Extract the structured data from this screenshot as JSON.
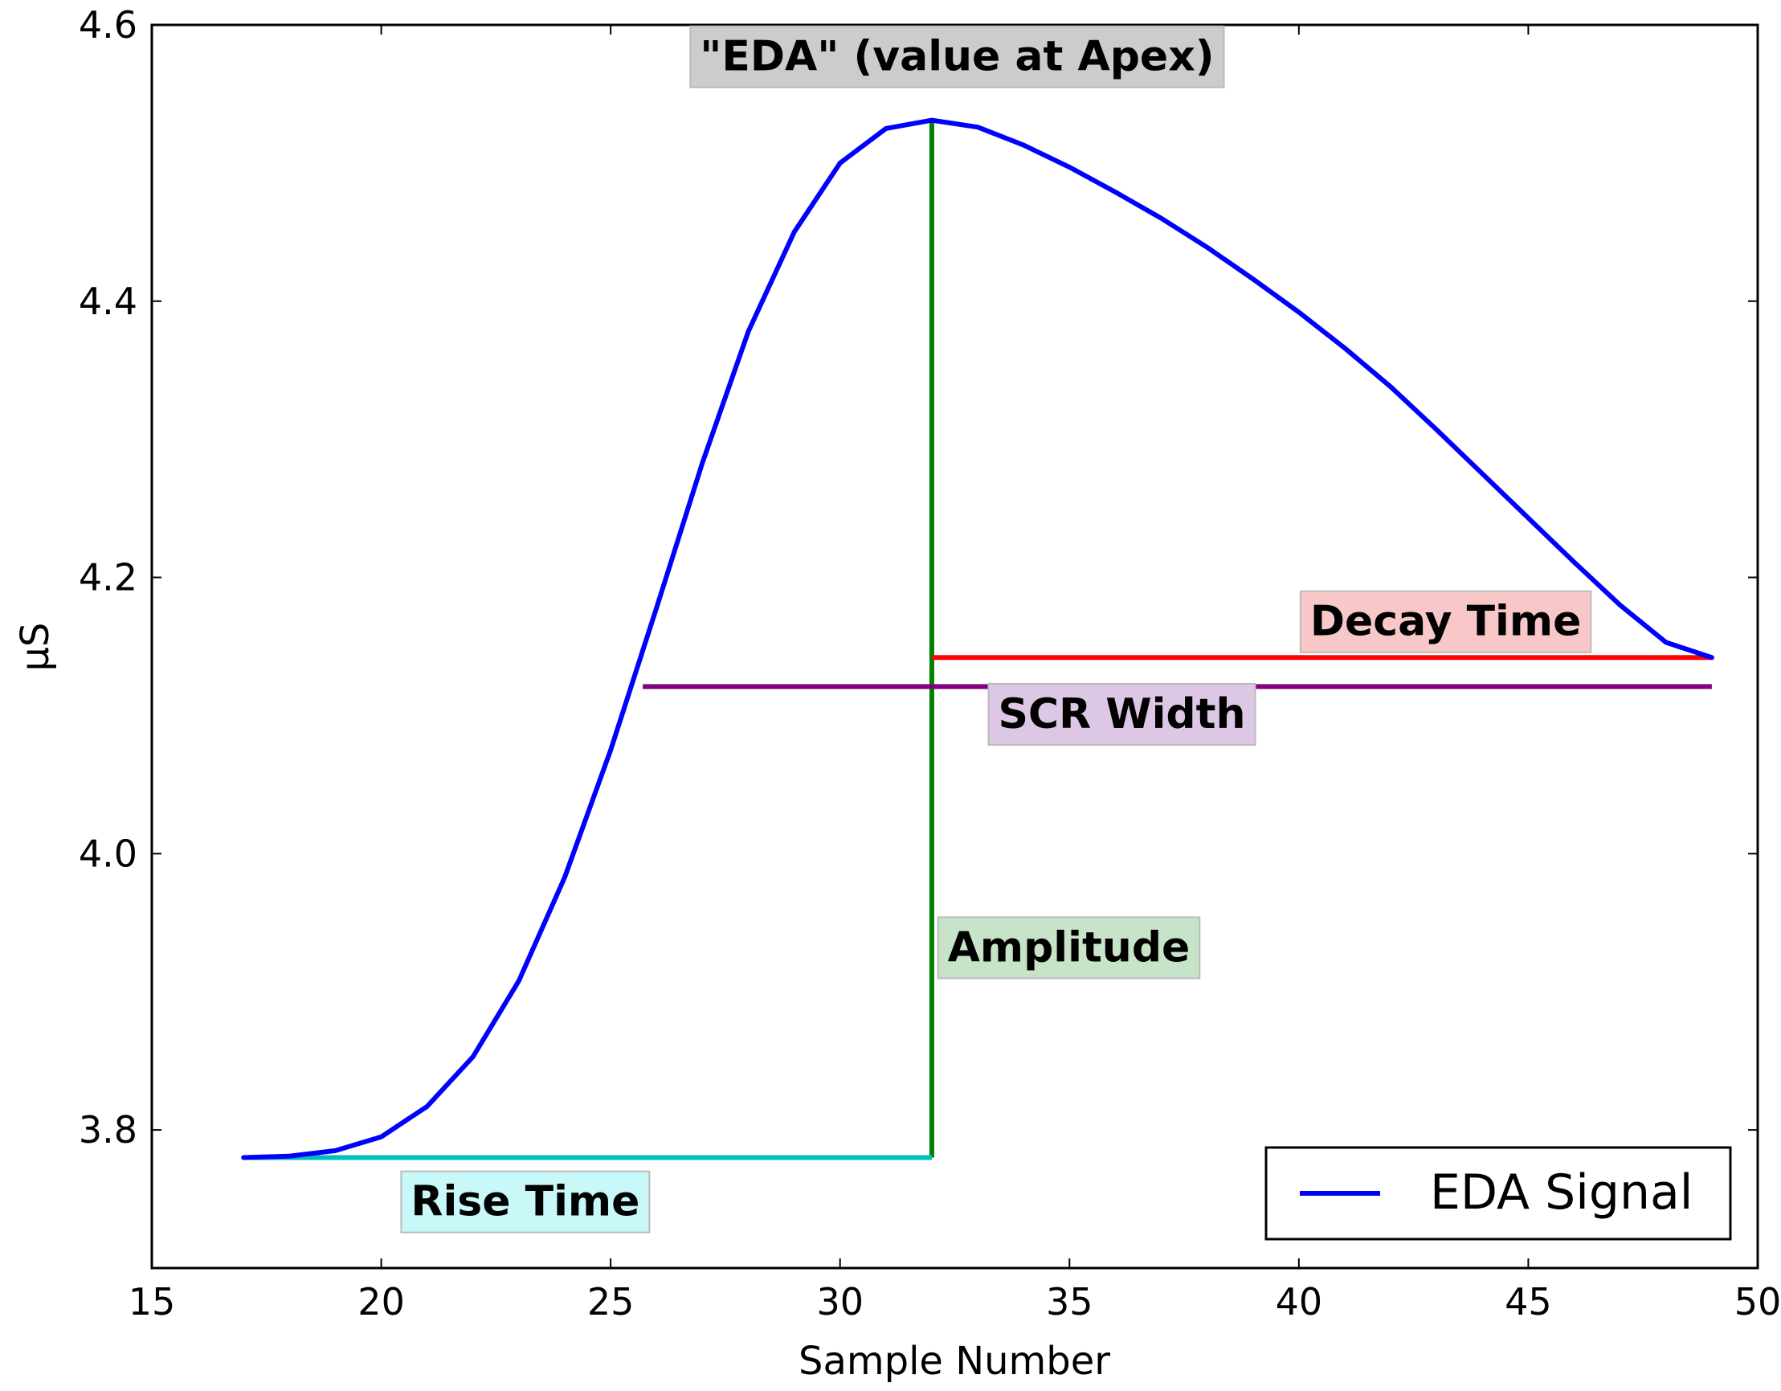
{
  "chart_data": {
    "type": "line",
    "xlabel": "Sample Number",
    "ylabel": "μS",
    "xlim": [
      15,
      50
    ],
    "ylim": [
      3.7,
      4.6
    ],
    "xticks": [
      15,
      20,
      25,
      30,
      35,
      40,
      45,
      50
    ],
    "yticks": [
      3.8,
      4.0,
      4.2,
      4.4,
      4.6
    ],
    "xtick_labels": [
      "15",
      "20",
      "25",
      "30",
      "35",
      "40",
      "45",
      "50"
    ],
    "ytick_labels": [
      "3.8",
      "4.0",
      "4.2",
      "4.4",
      "4.6"
    ],
    "grid": false,
    "legend": {
      "position": "lower-right",
      "entries": [
        "EDA Signal"
      ]
    },
    "series": [
      {
        "name": "EDA Signal",
        "color": "#0000ff",
        "x": [
          17,
          18,
          19,
          20,
          21,
          22,
          23,
          24,
          25,
          26,
          27,
          28,
          29,
          30,
          31,
          32,
          33,
          34,
          35,
          36,
          37,
          38,
          39,
          40,
          41,
          42,
          43,
          44,
          45,
          46,
          47,
          48,
          49
        ],
        "y": [
          3.78,
          3.781,
          3.785,
          3.795,
          3.817,
          3.853,
          3.908,
          3.983,
          4.075,
          4.178,
          4.283,
          4.378,
          4.45,
          4.5,
          4.525,
          4.531,
          4.526,
          4.513,
          4.497,
          4.479,
          4.46,
          4.439,
          4.416,
          4.392,
          4.366,
          4.338,
          4.307,
          4.275,
          4.243,
          4.211,
          4.18,
          4.153,
          4.142
        ]
      }
    ],
    "annotation_lines": [
      {
        "name": "Amplitude",
        "color": "#008000",
        "x1": 32,
        "y1": 3.78,
        "x2": 32,
        "y2": 4.531
      },
      {
        "name": "Rise Time",
        "color": "#00bfbf",
        "x1": 17,
        "y1": 3.78,
        "x2": 32,
        "y2": 3.78
      },
      {
        "name": "Decay Time",
        "color": "#ff0000",
        "x1": 32,
        "y1": 4.142,
        "x2": 49,
        "y2": 4.142
      },
      {
        "name": "SCR Width",
        "color": "#800080",
        "x1": 25.7,
        "y1": 4.121,
        "x2": 49,
        "y2": 4.121
      }
    ],
    "annotations": [
      {
        "text": "\"EDA\" (value at Apex)",
        "x": 26.7,
        "y": 4.567,
        "bg": "#cccccc"
      },
      {
        "text": "Decay Time",
        "x": 40,
        "y": 4.158,
        "bg": "#f8c8c8"
      },
      {
        "text": "SCR Width",
        "x": 33.2,
        "y": 4.091,
        "bg": "#dcc8e4"
      },
      {
        "text": "Amplitude",
        "x": 32.1,
        "y": 3.922,
        "bg": "#c8e4c8"
      },
      {
        "text": "Rise Time",
        "x": 20.4,
        "y": 3.738,
        "bg": "#c8f8f8"
      }
    ]
  }
}
